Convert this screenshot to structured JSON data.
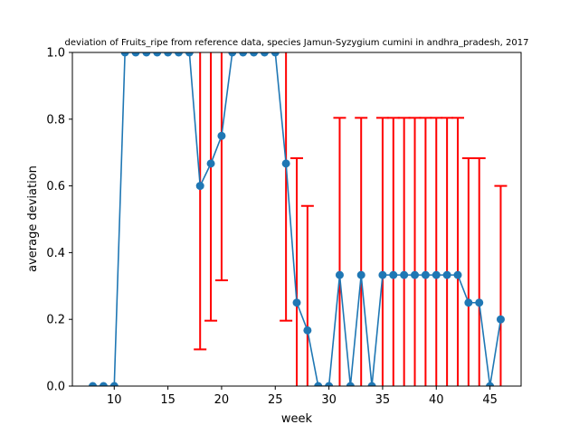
{
  "chart_data": {
    "type": "line",
    "title": "deviation of Fruits_ripe from reference data, species Jamun-Syzygium cumini in andhra_pradesh, 2017",
    "xlabel": "week",
    "ylabel": "average deviation",
    "xlim": [
      6.1,
      47.9
    ],
    "ylim": [
      0,
      1
    ],
    "x_ticks": [
      10,
      15,
      20,
      25,
      30,
      35,
      40,
      45
    ],
    "y_ticks": [
      0.0,
      0.2,
      0.4,
      0.6,
      0.8,
      1.0
    ],
    "grid": false,
    "legend": "none",
    "colors": {
      "line": "#1f77b4",
      "error_bar": "#ff0000",
      "axes": "#000000"
    },
    "series": [
      {
        "x": [
          8,
          9,
          10,
          11,
          12,
          13,
          14,
          15,
          16,
          17,
          18,
          19,
          20,
          21,
          22,
          23,
          24,
          25,
          26,
          27,
          28,
          29,
          30,
          31,
          32,
          33,
          34,
          35,
          36,
          37,
          38,
          39,
          40,
          41,
          42,
          43,
          44,
          45,
          46
        ],
        "y": [
          0,
          0,
          0,
          1,
          1,
          1,
          1,
          1,
          1,
          1,
          0.6,
          0.667,
          0.75,
          1,
          1,
          1,
          1,
          1,
          0.667,
          0.25,
          0.167,
          0,
          0,
          0.333,
          0,
          0.333,
          0,
          0.333,
          0.333,
          0.333,
          0.333,
          0.333,
          0.333,
          0.333,
          0.333,
          0.25,
          0.25,
          0,
          0.2
        ],
        "error": [
          0,
          0,
          0,
          0,
          0,
          0,
          0,
          0,
          0,
          0,
          0.49,
          0.471,
          0.433,
          0,
          0,
          0,
          0,
          0,
          0.471,
          0.433,
          0.373,
          0,
          0,
          0.471,
          0,
          0.471,
          0,
          0.471,
          0.471,
          0.471,
          0.471,
          0.471,
          0.471,
          0.471,
          0.471,
          0.433,
          0.433,
          0,
          0.4
        ]
      }
    ]
  }
}
